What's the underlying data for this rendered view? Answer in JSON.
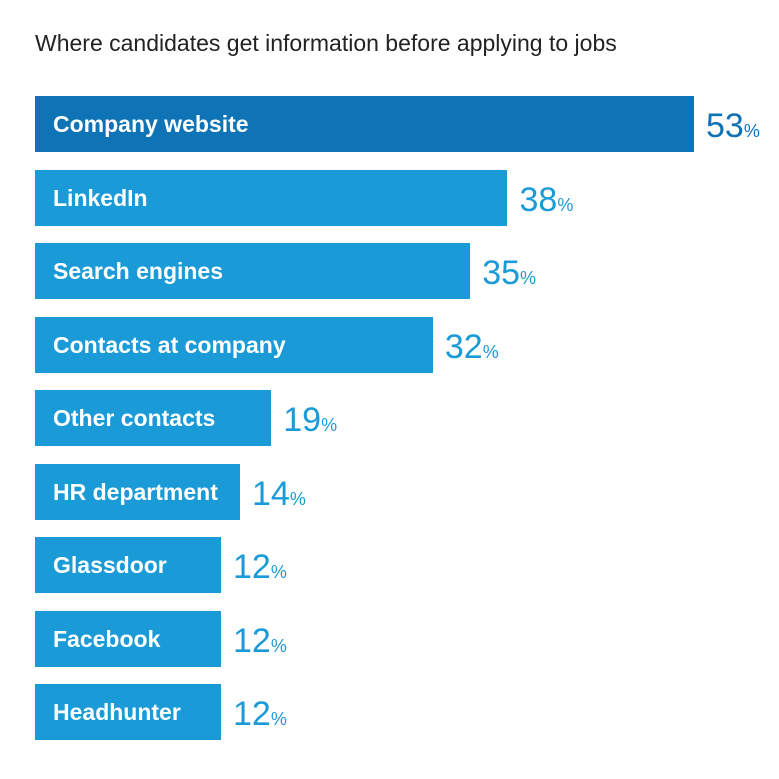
{
  "chart_data": {
    "type": "bar",
    "orientation": "horizontal",
    "title": "Where candidates get information before applying to jobs",
    "categories": [
      "Company website",
      "LinkedIn",
      "Search engines",
      "Contacts at company",
      "Other contacts",
      "HR department",
      "Glassdoor",
      "Facebook",
      "Headhunter"
    ],
    "values": [
      53,
      38,
      35,
      32,
      19,
      14,
      12,
      12,
      12
    ],
    "unit": "%",
    "xlabel": "",
    "ylabel": "",
    "grid": false,
    "colors": {
      "highlight": "#0f74b6",
      "bar": "#1a9bd7",
      "highlight_value": "#1171b5",
      "value": "#1a9bd7"
    }
  }
}
